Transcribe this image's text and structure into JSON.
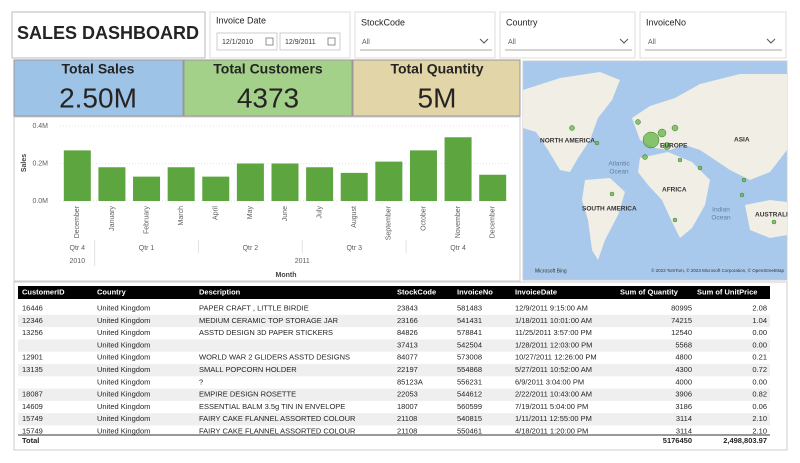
{
  "header": {
    "title": "SALES DASHBOARD"
  },
  "slicers": {
    "invoice_date": {
      "label": "Invoice Date",
      "start": "12/1/2010",
      "end": "12/9/2011"
    },
    "stock_code": {
      "label": "StockCode",
      "value": "All"
    },
    "country": {
      "label": "Country",
      "value": "All"
    },
    "invoice_no": {
      "label": "InvoiceNo",
      "value": "All"
    }
  },
  "cards": [
    {
      "title": "Total Sales",
      "value": "2.50M"
    },
    {
      "title": "Total Customers",
      "value": "4373"
    },
    {
      "title": "Total Quantity",
      "value": "5M"
    }
  ],
  "chart_data": {
    "type": "bar",
    "x_label": "Month",
    "y_label": "Sales",
    "categories": [
      "December",
      "January",
      "February",
      "March",
      "April",
      "May",
      "June",
      "July",
      "August",
      "September",
      "October",
      "November",
      "December"
    ],
    "values": [
      270000,
      180000,
      130000,
      180000,
      130000,
      200000,
      200000,
      180000,
      150000,
      210000,
      270000,
      340000,
      140000
    ],
    "quarters": [
      {
        "label": "Qtr 4",
        "span": 1
      },
      {
        "label": "Qtr 1",
        "span": 3
      },
      {
        "label": "Qtr 2",
        "span": 3
      },
      {
        "label": "Qtr 3",
        "span": 3
      },
      {
        "label": "Qtr 4",
        "span": 3
      }
    ],
    "years": [
      {
        "label": "2010",
        "span": 1
      },
      {
        "label": "2011",
        "span": 12
      }
    ],
    "color": "#5da53f",
    "ylim": [
      0,
      400000
    ],
    "yticks": [
      {
        "value": 0,
        "label": "0.0M"
      },
      {
        "value": 200000,
        "label": "0.2M"
      },
      {
        "value": 400000,
        "label": "0.4M"
      }
    ]
  },
  "map": {
    "labels": [
      "NORTH AMERICA",
      "EUROPE",
      "ASIA",
      "AFRICA",
      "SOUTH AMERICA",
      "AUSTRALI",
      "Atlantic",
      "Ocean",
      "Indian",
      "Ocean"
    ],
    "logo": "Microsoft Bing",
    "attribution": "© 2023 TomTom, © 2023 Microsoft Corporation, © OpenStreetMap"
  },
  "table": {
    "columns": [
      "CustomerID",
      "Country",
      "Description",
      "StockCode",
      "InvoiceNo",
      "InvoiceDate",
      "Sum of Quantity",
      "Sum of UnitPrice"
    ],
    "rows": [
      [
        "16446",
        "United Kingdom",
        "PAPER CRAFT , LITTLE BIRDIE",
        "23843",
        "581483",
        "12/9/2011 9:15:00 AM",
        "80995",
        "2.08"
      ],
      [
        "12346",
        "United Kingdom",
        "MEDIUM CERAMIC TOP STORAGE JAR",
        "23166",
        "541431",
        "1/18/2011 10:01:00 AM",
        "74215",
        "1.04"
      ],
      [
        "13256",
        "United Kingdom",
        "ASSTD DESIGN 3D PAPER STICKERS",
        "84826",
        "578841",
        "11/25/2011 3:57:00 PM",
        "12540",
        "0.00"
      ],
      [
        null,
        "United Kingdom",
        null,
        "37413",
        "542504",
        "1/28/2011 12:03:00 PM",
        "5568",
        "0.00"
      ],
      [
        "12901",
        "United Kingdom",
        "WORLD WAR 2 GLIDERS ASSTD DESIGNS",
        "84077",
        "573008",
        "10/27/2011 12:26:00 PM",
        "4800",
        "0.21"
      ],
      [
        "13135",
        "United Kingdom",
        "SMALL POPCORN HOLDER",
        "22197",
        "554868",
        "5/27/2011 10:52:00 AM",
        "4300",
        "0.72"
      ],
      [
        null,
        "United Kingdom",
        "?",
        "85123A",
        "556231",
        "6/9/2011 3:04:00 PM",
        "4000",
        "0.00"
      ],
      [
        "18087",
        "United Kingdom",
        "EMPIRE DESIGN ROSETTE",
        "22053",
        "544612",
        "2/22/2011 10:43:00 AM",
        "3906",
        "0.82"
      ],
      [
        "14609",
        "United Kingdom",
        "ESSENTIAL BALM 3.5g TIN IN ENVELOPE",
        "18007",
        "560599",
        "7/19/2011 5:04:00 PM",
        "3186",
        "0.06"
      ],
      [
        "15749",
        "United Kingdom",
        "FAIRY CAKE FLANNEL ASSORTED COLOUR",
        "21108",
        "540815",
        "1/11/2011 12:55:00 PM",
        "3114",
        "2.10"
      ],
      [
        "15749",
        "United Kingdom",
        "FAIRY CAKE FLANNEL ASSORTED COLOUR",
        "21108",
        "550461",
        "4/18/2011 1:20:00 PM",
        "3114",
        "2.10"
      ]
    ],
    "total": {
      "label": "Total",
      "quantity": "5176450",
      "unit_price": "2,498,803.97"
    }
  }
}
